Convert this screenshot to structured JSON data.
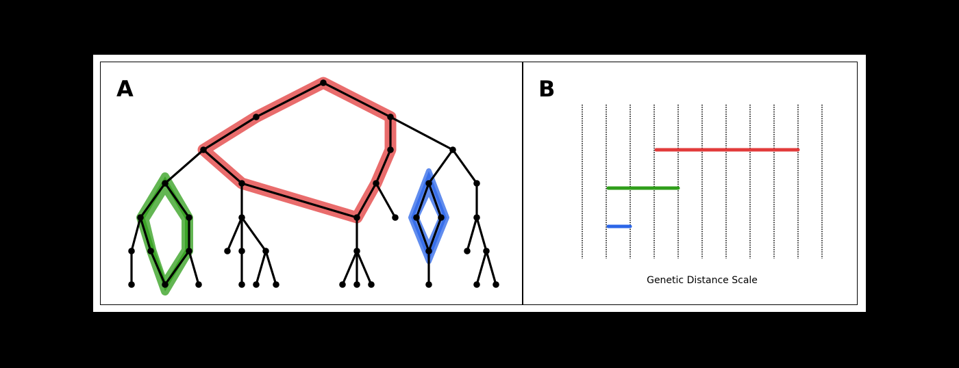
{
  "panels": {
    "a": {
      "label": "A"
    },
    "b": {
      "label": "B",
      "caption": "Genetic Distance Scale"
    }
  },
  "colors": {
    "red": "#e23b3b",
    "green": "#2f9e1a",
    "blue": "#2b66e8",
    "tree": "#000000"
  },
  "genetic_distance_bars": [
    {
      "color": "red",
      "start_line": 3,
      "end_line": 9
    },
    {
      "color": "green",
      "start_line": 1,
      "end_line": 4
    },
    {
      "color": "blue",
      "start_line": 1,
      "end_line": 2
    }
  ],
  "scale_line_count": 11
}
